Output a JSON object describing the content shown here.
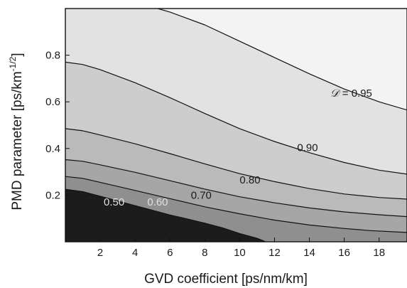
{
  "chart_data": {
    "type": "contour",
    "xlabel": "GVD coefficient [ps/nm/km]",
    "ylabel": "PMD parameter [ps/km",
    "ylabel_exp": "-1/2",
    "ylabel_close": "]",
    "xlim": [
      0,
      19.6
    ],
    "ylim": [
      0,
      1.0
    ],
    "x_ticks": [
      "2",
      "4",
      "6",
      "8",
      "10",
      "12",
      "14",
      "16",
      "18"
    ],
    "y_ticks": [
      "0.2",
      "0.4",
      "0.6",
      "0.8"
    ],
    "x_tick_values": [
      2,
      4,
      6,
      8,
      10,
      12,
      14,
      16,
      18
    ],
    "y_tick_values": [
      0.2,
      0.4,
      0.6,
      0.8
    ],
    "grid": false,
    "levels": [
      {
        "level": 0.5,
        "label": "0.50",
        "label_x": 2.2,
        "label_y": 0.155,
        "x": [
          0,
          1,
          2,
          3,
          4,
          5,
          6,
          7,
          8,
          9,
          9.5,
          10,
          11,
          11.5
        ],
        "y": [
          0.225,
          0.215,
          0.195,
          0.175,
          0.155,
          0.135,
          0.115,
          0.098,
          0.08,
          0.06,
          0.048,
          0.035,
          0.015,
          0.0
        ]
      },
      {
        "level": 0.6,
        "label": "0.60",
        "label_x": 4.7,
        "label_y": 0.155,
        "x": [
          0,
          1,
          2,
          4,
          6,
          8,
          10,
          12,
          14,
          16,
          17.5,
          19.6
        ],
        "y": [
          0.28,
          0.272,
          0.255,
          0.22,
          0.185,
          0.15,
          0.12,
          0.093,
          0.072,
          0.057,
          0.048,
          0.04
        ]
      },
      {
        "level": 0.7,
        "label": "0.70",
        "label_x": 7.2,
        "label_y": 0.185,
        "x": [
          0,
          1,
          2,
          4,
          6,
          8,
          10,
          12,
          14,
          16,
          18,
          19.6
        ],
        "y": [
          0.352,
          0.345,
          0.33,
          0.298,
          0.262,
          0.226,
          0.193,
          0.167,
          0.145,
          0.128,
          0.116,
          0.108
        ]
      },
      {
        "level": 0.8,
        "label": "0.80",
        "label_x": 10.0,
        "label_y": 0.25,
        "x": [
          0,
          1,
          2,
          4,
          6,
          8,
          10,
          12,
          14,
          16,
          18,
          19.6
        ],
        "y": [
          0.485,
          0.476,
          0.458,
          0.42,
          0.378,
          0.334,
          0.292,
          0.258,
          0.228,
          0.205,
          0.19,
          0.183
        ]
      },
      {
        "level": 0.9,
        "label": "0.90",
        "label_x": 13.3,
        "label_y": 0.388,
        "x": [
          0,
          1,
          2,
          4,
          6,
          8,
          10,
          12,
          14,
          16,
          18,
          19.6
        ],
        "y": [
          0.77,
          0.76,
          0.738,
          0.682,
          0.618,
          0.55,
          0.485,
          0.43,
          0.382,
          0.34,
          0.307,
          0.29
        ]
      },
      {
        "level": 0.95,
        "label": "= 0.95",
        "label_prefix": "𝒟",
        "label_x": 15.2,
        "label_y": 0.622,
        "x": [
          5.3,
          6,
          8,
          10,
          12,
          14,
          16,
          18,
          19.6
        ],
        "y": [
          1.0,
          0.985,
          0.93,
          0.86,
          0.79,
          0.72,
          0.655,
          0.6,
          0.565
        ]
      }
    ],
    "fill_colors": [
      "#1c1c1c",
      "#8f8f8f",
      "#a6a6a6",
      "#bababa",
      "#cdcdcd",
      "#e2e2e2",
      "#f3f3f3"
    ],
    "label_colors": [
      "#e0e0e0",
      "#e0e0e0",
      "#1a1a1a",
      "#1a1a1a",
      "#1a1a1a",
      "#1a1a1a"
    ],
    "line_color": "#111111"
  }
}
